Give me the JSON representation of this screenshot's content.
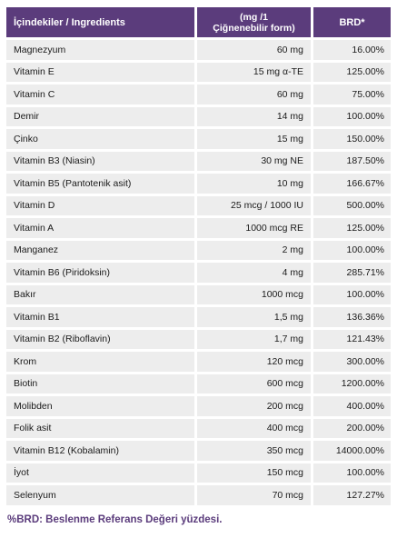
{
  "table": {
    "headers": {
      "ingredient": "İçindekiler / Ingredients",
      "amount_line1": "(mg /1",
      "amount_line2": "Çiğnenebilir form)",
      "brd": "BRD*"
    },
    "rows": [
      {
        "name": "Magnezyum",
        "amount": "60 mg",
        "brd": "16.00%"
      },
      {
        "name": "Vitamin E",
        "amount": "15 mg α-TE",
        "brd": "125.00%"
      },
      {
        "name": "Vitamin C",
        "amount": "60 mg",
        "brd": "75.00%"
      },
      {
        "name": "Demir",
        "amount": "14 mg",
        "brd": "100.00%"
      },
      {
        "name": "Çinko",
        "amount": "15 mg",
        "brd": "150.00%"
      },
      {
        "name": "Vitamin B3 (Niasin)",
        "amount": "30 mg NE",
        "brd": "187.50%"
      },
      {
        "name": "Vitamin B5 (Pantotenik asit)",
        "amount": "10 mg",
        "brd": "166.67%"
      },
      {
        "name": "Vitamin D",
        "amount": "25 mcg / 1000 IU",
        "brd": "500.00%"
      },
      {
        "name": "Vitamin A",
        "amount": "1000 mcg RE",
        "brd": "125.00%"
      },
      {
        "name": "Manganez",
        "amount": "2 mg",
        "brd": "100.00%"
      },
      {
        "name": "Vitamin B6 (Piridoksin)",
        "amount": "4 mg",
        "brd": "285.71%"
      },
      {
        "name": "Bakır",
        "amount": "1000 mcg",
        "brd": "100.00%"
      },
      {
        "name": "Vitamin B1",
        "amount": "1,5 mg",
        "brd": "136.36%"
      },
      {
        "name": "Vitamin B2 (Riboflavin)",
        "amount": "1,7 mg",
        "brd": "121.43%"
      },
      {
        "name": "Krom",
        "amount": "120 mcg",
        "brd": "300.00%"
      },
      {
        "name": "Biotin",
        "amount": "600 mcg",
        "brd": "1200.00%"
      },
      {
        "name": "Molibden",
        "amount": "200 mcg",
        "brd": "400.00%"
      },
      {
        "name": "Folik asit",
        "amount": "400 mcg",
        "brd": "200.00%"
      },
      {
        "name": "Vitamin B12 (Kobalamin)",
        "amount": "350  mcg",
        "brd": "14000.00%"
      },
      {
        "name": "İyot",
        "amount": "150 mcg",
        "brd": "100.00%"
      },
      {
        "name": "Selenyum",
        "amount": "70 mcg",
        "brd": "127.27%"
      }
    ]
  },
  "footnote": "%BRD: Beslenme Referans Değeri yüzdesi.",
  "colors": {
    "header_bg": "#5b3c7c",
    "row_bg": "#ededed",
    "footnote": "#5b3c7c"
  }
}
